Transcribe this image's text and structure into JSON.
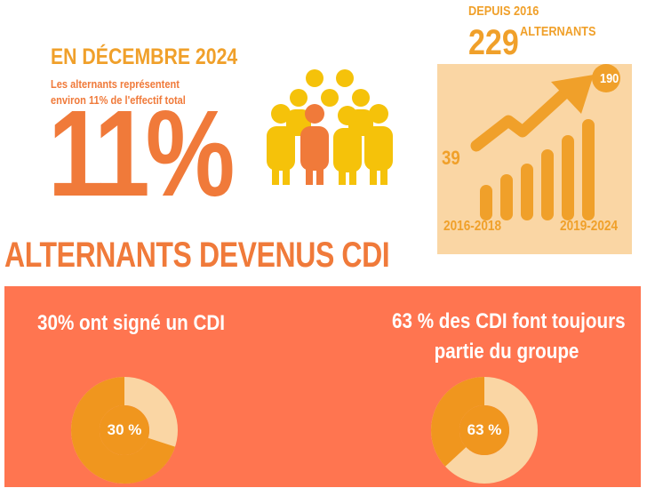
{
  "december": {
    "title": "EN DÉCEMBRE 2024",
    "line1": "Les alternants représentent",
    "line2": "environ 11% de l'effectif total",
    "big_value": "11%",
    "people_icon": "people-group-icon"
  },
  "since": {
    "label": "DEPUIS 2016",
    "total": "229",
    "unit": "ALTERNANTS"
  },
  "growth": {
    "start_value": "39",
    "end_value": "190",
    "start_period": "2016-2018",
    "end_period": "2019-2024",
    "arrow_icon": "trend-up-arrow-icon"
  },
  "section": {
    "heading": "ALTERNANTS DEVENUS CDI"
  },
  "cdi": {
    "left_title": "30% ont signé un CDI",
    "left_label": "30 %",
    "left_fraction": 0.3,
    "right_title_line1": "63 % des CDI font toujours",
    "right_title_line2": "partie du groupe",
    "right_label": "63 %",
    "right_fraction": 0.63
  },
  "colors": {
    "accent_orange": "#f0a02a",
    "dark_orange": "#f07a3a",
    "panel_coral": "#ff7550",
    "light_peach": "#fad6a4",
    "people_yellow": "#f5c20a"
  }
}
